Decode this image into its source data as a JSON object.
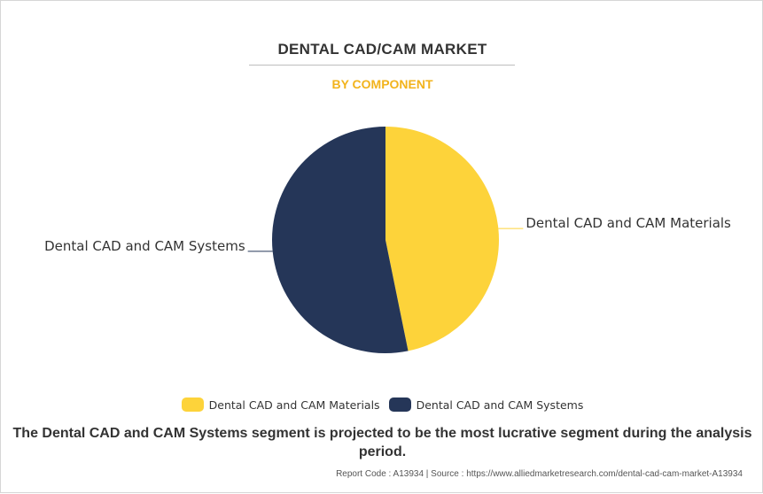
{
  "header": {
    "title": "DENTAL CAD/CAM MARKET",
    "subtitle": "BY COMPONENT"
  },
  "chart_data": {
    "type": "pie",
    "categories": [
      "Dental CAD and CAM Materials",
      "Dental CAD and CAM Systems"
    ],
    "values": [
      46.8,
      53.2
    ],
    "colors": [
      "#fdd33a",
      "#253658"
    ],
    "legend_placement": "bottom"
  },
  "footnote": "The Dental CAD and CAM Systems segment is projected to be the most lucrative segment during the analysis period.",
  "source": "Report Code : A13934  |  Source : https://www.alliedmarketresearch.com/dental-cad-cam-market-A13934"
}
